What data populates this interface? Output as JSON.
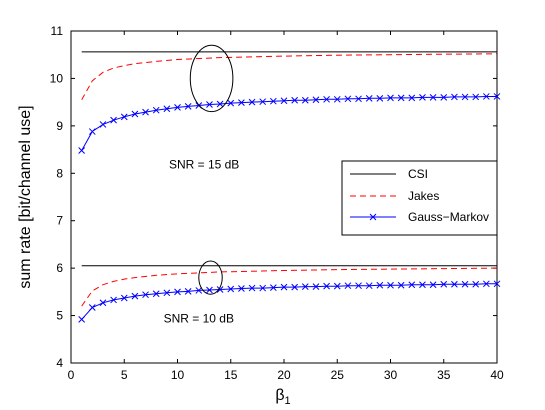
{
  "chart_data": {
    "type": "line",
    "xlabel": "β",
    "xlabel_sub": "1",
    "ylabel": "sum rate [bit/channel use]",
    "xlim": [
      0,
      40
    ],
    "ylim": [
      4,
      11
    ],
    "x_ticks": [
      0,
      5,
      10,
      15,
      20,
      25,
      30,
      35,
      40
    ],
    "y_ticks": [
      4,
      5,
      6,
      7,
      8,
      9,
      10,
      11
    ],
    "grid": false,
    "legend_position": "right",
    "legend": [
      "CSI",
      "Jakes",
      "Gauss−Markov"
    ],
    "annotations": [
      {
        "text": "SNR = 15 dB",
        "x": 12.5,
        "y": 8.1
      },
      {
        "text": "SNR = 10 dB",
        "x": 12.0,
        "y": 4.85
      }
    ],
    "series": [
      {
        "name": "CSI",
        "group": "SNR = 15 dB",
        "color": "#000000",
        "style": "solid",
        "x": [
          1,
          40
        ],
        "y": [
          10.56,
          10.56
        ]
      },
      {
        "name": "Jakes",
        "group": "SNR = 15 dB",
        "color": "#ff0000",
        "style": "dashed",
        "x": [
          1,
          2,
          3,
          4,
          5,
          6,
          8,
          10,
          12,
          14,
          16,
          18,
          20,
          25,
          30,
          35,
          40
        ],
        "y": [
          9.55,
          9.95,
          10.13,
          10.22,
          10.27,
          10.31,
          10.36,
          10.4,
          10.42,
          10.44,
          10.45,
          10.46,
          10.47,
          10.49,
          10.5,
          10.51,
          10.52
        ]
      },
      {
        "name": "Gauss−Markov",
        "group": "SNR = 15 dB",
        "color": "#0000ff",
        "style": "solid-x",
        "x": [
          1,
          2,
          3,
          4,
          5,
          6,
          7,
          8,
          9,
          10,
          11,
          12,
          13,
          14,
          15,
          16,
          17,
          18,
          19,
          20,
          21,
          22,
          23,
          24,
          25,
          26,
          27,
          28,
          29,
          30,
          31,
          32,
          33,
          34,
          35,
          36,
          37,
          38,
          39,
          40
        ],
        "y": [
          8.48,
          8.88,
          9.03,
          9.12,
          9.19,
          9.25,
          9.29,
          9.33,
          9.36,
          9.39,
          9.41,
          9.43,
          9.45,
          9.46,
          9.48,
          9.49,
          9.5,
          9.51,
          9.52,
          9.53,
          9.54,
          9.54,
          9.55,
          9.56,
          9.56,
          9.57,
          9.57,
          9.58,
          9.58,
          9.59,
          9.59,
          9.59,
          9.6,
          9.6,
          9.6,
          9.61,
          9.61,
          9.61,
          9.62,
          9.62
        ]
      },
      {
        "name": "CSI",
        "group": "SNR = 10 dB",
        "color": "#000000",
        "style": "solid",
        "x": [
          1,
          40
        ],
        "y": [
          6.05,
          6.05
        ]
      },
      {
        "name": "Jakes",
        "group": "SNR = 10 dB",
        "color": "#ff0000",
        "style": "dashed",
        "x": [
          1,
          2,
          3,
          4,
          5,
          6,
          8,
          10,
          12,
          14,
          16,
          18,
          20,
          25,
          30,
          35,
          40
        ],
        "y": [
          5.2,
          5.52,
          5.65,
          5.72,
          5.77,
          5.8,
          5.85,
          5.88,
          5.9,
          5.92,
          5.93,
          5.94,
          5.95,
          5.97,
          5.98,
          5.99,
          6.0
        ]
      },
      {
        "name": "Gauss−Markov",
        "group": "SNR = 10 dB",
        "color": "#0000ff",
        "style": "solid-x",
        "x": [
          1,
          2,
          3,
          4,
          5,
          6,
          7,
          8,
          9,
          10,
          11,
          12,
          13,
          14,
          15,
          16,
          17,
          18,
          19,
          20,
          21,
          22,
          23,
          24,
          25,
          26,
          27,
          28,
          29,
          30,
          31,
          32,
          33,
          34,
          35,
          36,
          37,
          38,
          39,
          40
        ],
        "y": [
          4.92,
          5.17,
          5.27,
          5.33,
          5.37,
          5.41,
          5.44,
          5.46,
          5.48,
          5.5,
          5.51,
          5.53,
          5.54,
          5.55,
          5.56,
          5.57,
          5.58,
          5.58,
          5.59,
          5.6,
          5.6,
          5.61,
          5.61,
          5.62,
          5.62,
          5.63,
          5.63,
          5.63,
          5.64,
          5.64,
          5.64,
          5.65,
          5.65,
          5.65,
          5.66,
          5.66,
          5.66,
          5.66,
          5.67,
          5.67
        ]
      }
    ],
    "ellipses": [
      {
        "cx": 13.2,
        "cy": 10.0,
        "rx": 2.0,
        "ry": 0.7
      },
      {
        "cx": 13.1,
        "cy": 5.8,
        "rx": 1.1,
        "ry": 0.35
      }
    ]
  }
}
